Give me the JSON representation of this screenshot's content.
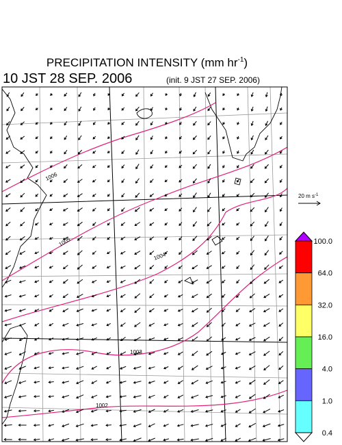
{
  "header": {
    "title": "PRECIPITATION INTENSITY (mm hr",
    "title_exp": "-1",
    "title_close": ")",
    "valid_time": "10 JST 28 SEP. 2006",
    "init_time": "(init. 9 JST 27 SEP. 2006)"
  },
  "isobar_labels": [
    "1006",
    "1005",
    "1004",
    "1003",
    "1002"
  ],
  "wind_legend": {
    "label": "20 m s",
    "exp": "-1"
  },
  "colorbar": {
    "over_color": "#b000ff",
    "colors": [
      "#ff0000",
      "#ff9933",
      "#ffff66",
      "#66ee55",
      "#6666ff",
      "#66ffff"
    ],
    "under_color": "#ffffff",
    "labels": [
      "100.0",
      "64.0",
      "32.0",
      "16.0",
      "4.0",
      "1.0",
      "0.4"
    ]
  }
}
